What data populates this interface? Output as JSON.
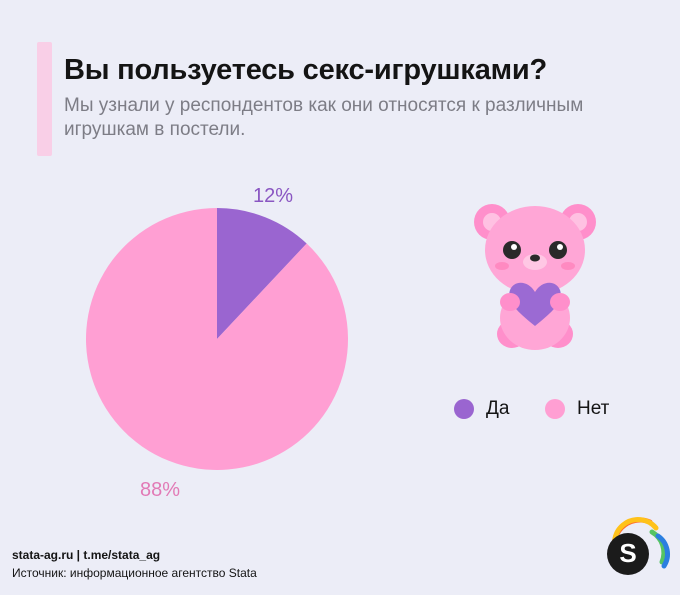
{
  "header": {
    "title": "Вы пользуетесь секс-игрушками?",
    "subtitle": "Мы узнали у респондентов как они относятся к различным игрушкам в постели."
  },
  "chart_data": {
    "type": "pie",
    "categories": [
      "Да",
      "Нет"
    ],
    "values": [
      12,
      88
    ],
    "labels": [
      "12%",
      "88%"
    ],
    "colors": [
      "#9a65d0",
      "#ff9fd3"
    ],
    "label_colors": [
      "#8a56c2",
      "#e27ab6"
    ],
    "legend_position": "right"
  },
  "legend": {
    "items": [
      {
        "label": "Да",
        "color": "#9a65d0"
      },
      {
        "label": "Нет",
        "color": "#ff9fd3"
      }
    ]
  },
  "illustration": {
    "icon": "teddy-bear-with-heart-icon"
  },
  "footer": {
    "links": "stata-ag.ru | t.me/stata_ag",
    "source": "Источник: информационное агентство Stata",
    "logo_letter": "S"
  }
}
